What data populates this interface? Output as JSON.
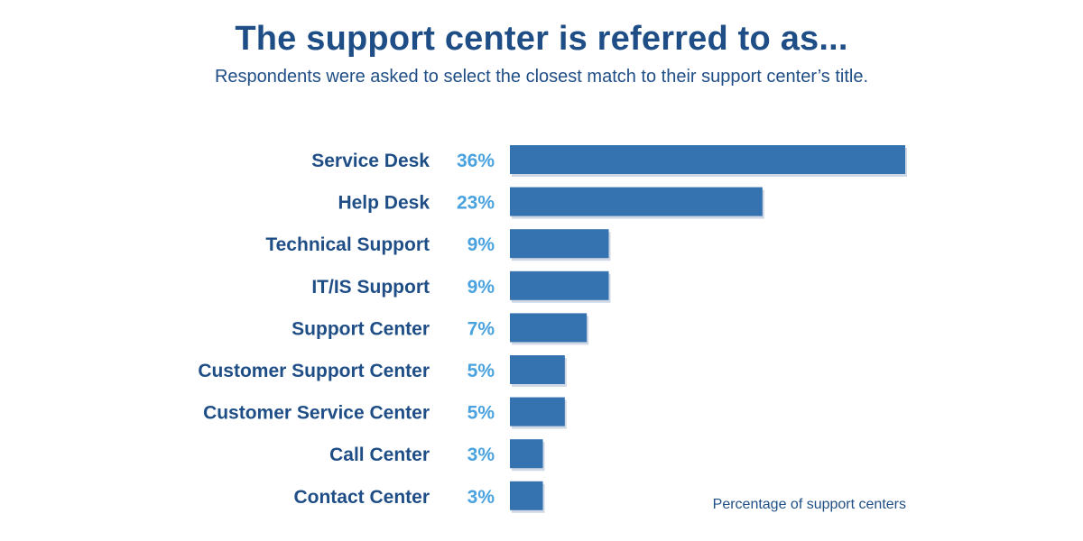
{
  "chart_data": {
    "type": "bar",
    "orientation": "horizontal",
    "title": "The support center is referred to as...",
    "subtitle": "Respondents were asked to select the closest match to their support center’s title.",
    "categories": [
      "Service Desk",
      "Help Desk",
      "Technical Support",
      "IT/IS Support",
      "Support Center",
      "Customer Support Center",
      "Customer Service Center",
      "Call Center",
      "Contact Center"
    ],
    "values": [
      36,
      23,
      9,
      9,
      7,
      5,
      5,
      3,
      3
    ],
    "value_labels": [
      "36%",
      "23%",
      "9%",
      "9%",
      "7%",
      "5%",
      "5%",
      "3%",
      "3%"
    ],
    "unit": "%",
    "note": "Percentage of support centers",
    "colors": {
      "bar": "#3572b0",
      "bar_shadow": "#cfd8e4",
      "label": "#1f4e86",
      "value": "#4aa3df"
    }
  }
}
